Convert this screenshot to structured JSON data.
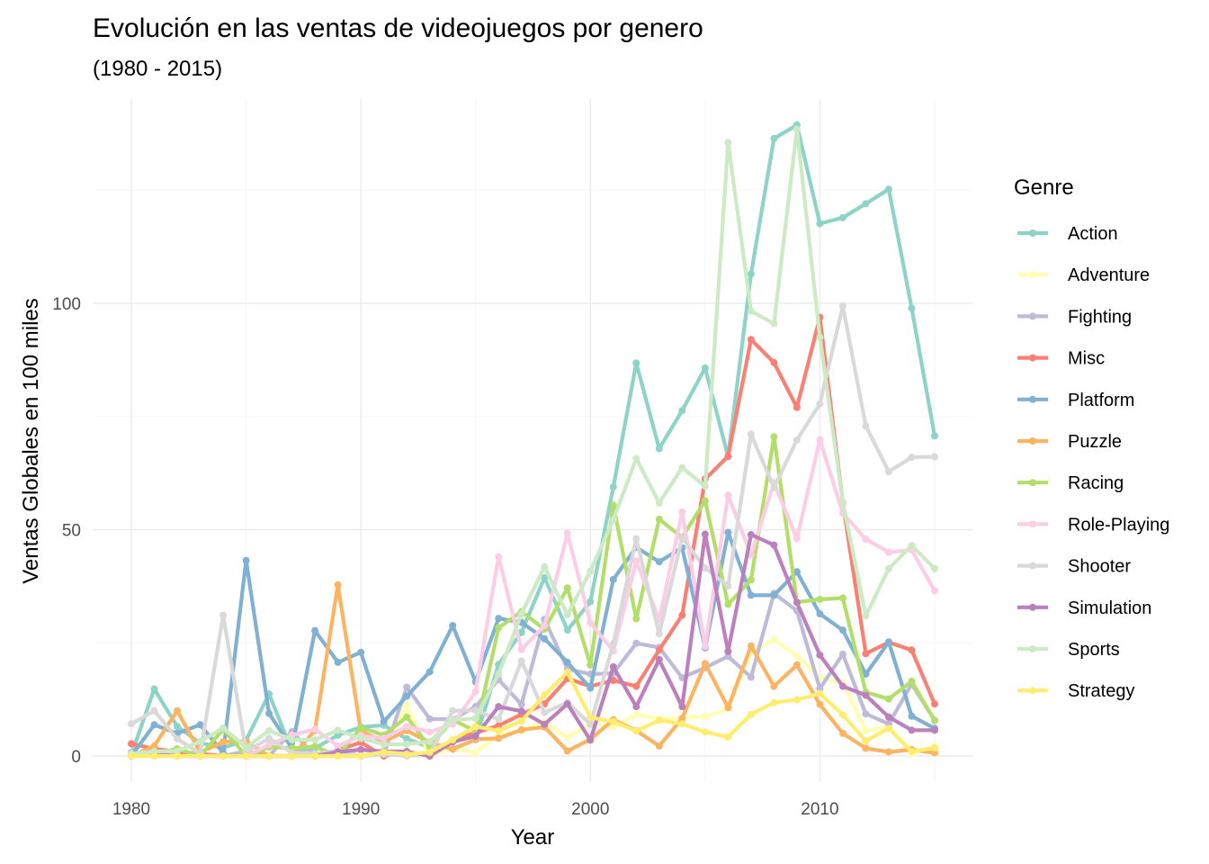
{
  "chart_data": {
    "type": "line",
    "title": "Evolución en las ventas de videojuegos por genero",
    "subtitle": "(1980 - 2015)",
    "xlabel": "Year",
    "ylabel": "Ventas Globales en 100 miles",
    "xlim": [
      1980,
      2015
    ],
    "ylim": [
      0,
      140
    ],
    "xticks": [
      1980,
      1990,
      2000,
      2010
    ],
    "yticks": [
      0,
      50,
      100
    ],
    "grid": true,
    "legend_title": "Genre",
    "legend_position": "right",
    "x": [
      1980,
      1981,
      1982,
      1983,
      1984,
      1985,
      1986,
      1987,
      1988,
      1989,
      1990,
      1991,
      1992,
      1993,
      1994,
      1995,
      1996,
      1997,
      1998,
      1999,
      2000,
      2001,
      2002,
      2003,
      2004,
      2005,
      2006,
      2007,
      2008,
      2009,
      2010,
      2011,
      2012,
      2013,
      2014,
      2015
    ],
    "series": [
      {
        "name": "Action",
        "color": "#8dd3c7",
        "values": [
          0.3,
          14.8,
          6.5,
          2.9,
          1.8,
          3.5,
          13.7,
          1.1,
          1.7,
          4.6,
          6.4,
          6.8,
          3.8,
          1.9,
          1.6,
          3.6,
          20.2,
          27.3,
          39.4,
          27.8,
          34.1,
          59.4,
          86.8,
          67.9,
          76.3,
          85.7,
          66.1,
          106.5,
          136.4,
          139.4,
          117.6,
          118.9,
          122.0,
          125.2,
          98.9,
          70.7
        ]
      },
      {
        "name": "Adventure",
        "color": "#ffffb3",
        "values": [
          0.0,
          0.0,
          0.0,
          0.4,
          0.0,
          0.0,
          0.0,
          0.0,
          0.0,
          0.0,
          0.0,
          1.4,
          11.2,
          0.1,
          1.6,
          0.8,
          4.7,
          5.5,
          7.5,
          4.1,
          7.3,
          6.3,
          9.2,
          8.2,
          8.4,
          8.7,
          10.4,
          23.2,
          25.7,
          22.1,
          17.3,
          16.1,
          5.6,
          6.5,
          0.5,
          2.1
        ]
      },
      {
        "name": "Fighting",
        "color": "#bebada",
        "values": [
          0.8,
          0.0,
          0.0,
          0.0,
          0.0,
          1.1,
          0.0,
          5.4,
          0.0,
          0.0,
          0.0,
          0.4,
          15.2,
          8.2,
          8.1,
          10.9,
          16.9,
          11.4,
          30.2,
          19.2,
          18.1,
          18.3,
          24.9,
          24.0,
          17.3,
          19.5,
          22.0,
          17.4,
          35.9,
          32.1,
          14.9,
          22.5,
          9.3,
          7.1,
          15.9,
          7.9
        ]
      },
      {
        "name": "Misc",
        "color": "#fb8072",
        "values": [
          2.7,
          1.6,
          0.9,
          0.5,
          0.0,
          0.0,
          0.0,
          0.0,
          0.0,
          1.3,
          3.0,
          0.0,
          0.9,
          0.0,
          3.5,
          5.1,
          6.7,
          9.2,
          11.5,
          17.1,
          15.4,
          16.7,
          15.4,
          23.4,
          31.1,
          61.2,
          66.2,
          92.0,
          86.9,
          77.0,
          96.9,
          56.0,
          22.6,
          25.1,
          23.4,
          11.5
        ]
      },
      {
        "name": "Platform",
        "color": "#80b1d3",
        "values": [
          0.0,
          6.9,
          5.0,
          6.9,
          0.7,
          43.2,
          9.4,
          1.7,
          27.7,
          20.7,
          22.9,
          7.6,
          13.2,
          18.6,
          28.8,
          16.4,
          30.4,
          29.5,
          25.9,
          20.7,
          15.0,
          39.0,
          46.1,
          42.9,
          46.0,
          23.9,
          49.4,
          35.5,
          35.5,
          40.7,
          31.4,
          27.8,
          18.1,
          25.2,
          8.8,
          6.1
        ]
      },
      {
        "name": "Puzzle",
        "color": "#fdb462",
        "values": [
          0.0,
          2.2,
          10.0,
          0.8,
          3.1,
          3.2,
          0.0,
          0.0,
          5.6,
          37.8,
          5.5,
          3.2,
          5.6,
          3.0,
          1.5,
          3.7,
          3.9,
          5.8,
          6.4,
          1.1,
          3.7,
          8.0,
          5.6,
          2.2,
          8.3,
          20.4,
          10.7,
          24.3,
          15.4,
          20.1,
          11.4,
          5.0,
          1.7,
          0.9,
          1.4,
          0.7
        ]
      },
      {
        "name": "Racing",
        "color": "#b3de69",
        "values": [
          0.0,
          0.5,
          1.6,
          0.0,
          5.9,
          0.0,
          2.0,
          1.7,
          2.1,
          0.0,
          6.3,
          4.6,
          8.6,
          2.0,
          8.0,
          5.5,
          28.3,
          31.9,
          28.0,
          37.1,
          20.1,
          55.4,
          30.3,
          52.3,
          48.3,
          56.4,
          33.5,
          38.9,
          70.5,
          34.0,
          34.6,
          34.9,
          14.1,
          12.6,
          16.5,
          7.8
        ]
      },
      {
        "name": "Role-Playing",
        "color": "#fccde5",
        "values": [
          0.0,
          0.0,
          0.0,
          0.0,
          0.0,
          0.0,
          2.5,
          4.6,
          5.9,
          2.2,
          4.5,
          3.9,
          6.5,
          5.3,
          7.0,
          14.2,
          44.0,
          23.5,
          28.8,
          49.2,
          29.4,
          23.2,
          43.1,
          30.1,
          53.9,
          24.2,
          57.6,
          44.4,
          60.4,
          48.0,
          69.9,
          53.6,
          47.9,
          45.0,
          45.5,
          36.5
        ]
      },
      {
        "name": "Shooter",
        "color": "#d9d9d9",
        "values": [
          7.1,
          10.0,
          3.8,
          0.5,
          31.1,
          1.0,
          3.9,
          0.7,
          0.5,
          1.2,
          0.0,
          0.4,
          0.0,
          0.4,
          10.0,
          10.1,
          8.1,
          21.0,
          9.6,
          11.8,
          7.0,
          24.8,
          48.0,
          27.0,
          48.2,
          41.5,
          37.6,
          71.1,
          59.3,
          69.8,
          77.8,
          99.4,
          72.9,
          62.8,
          66.0,
          66.1
        ]
      },
      {
        "name": "Simulation",
        "color": "#bc80bd",
        "values": [
          0.0,
          0.5,
          0.0,
          0.0,
          0.0,
          0.0,
          0.0,
          0.0,
          0.0,
          0.9,
          1.4,
          1.0,
          1.0,
          0.0,
          3.1,
          4.4,
          10.9,
          9.9,
          7.0,
          11.5,
          3.5,
          19.7,
          10.9,
          21.3,
          10.9,
          49.0,
          23.1,
          48.9,
          46.6,
          33.9,
          22.3,
          15.4,
          13.4,
          8.6,
          5.7,
          5.7
        ]
      },
      {
        "name": "Sports",
        "color": "#ccebc5",
        "values": [
          0.5,
          1.0,
          1.1,
          3.2,
          6.2,
          1.9,
          5.6,
          3.6,
          3.6,
          5.7,
          3.9,
          2.6,
          2.6,
          3.2,
          8.0,
          8.3,
          18.1,
          31.4,
          41.8,
          31.2,
          40.8,
          52.2,
          65.7,
          55.9,
          63.7,
          59.6,
          135.5,
          98.3,
          95.5,
          138.5,
          92.5,
          56.1,
          31.0,
          41.4,
          46.5,
          41.4
        ]
      },
      {
        "name": "Strategy",
        "color": "#ffed6f",
        "values": [
          0.0,
          0.0,
          0.0,
          0.0,
          0.0,
          0.0,
          0.0,
          0.0,
          0.0,
          0.0,
          0.0,
          0.9,
          0.4,
          0.8,
          3.6,
          6.5,
          5.6,
          7.7,
          13.5,
          18.5,
          8.5,
          7.6,
          5.5,
          7.9,
          7.1,
          5.3,
          4.2,
          9.2,
          11.8,
          12.4,
          13.8,
          9.1,
          3.3,
          6.1,
          1.0,
          1.8
        ]
      }
    ]
  }
}
